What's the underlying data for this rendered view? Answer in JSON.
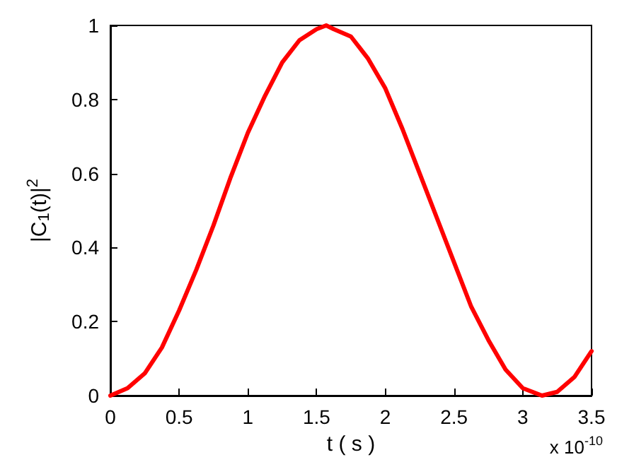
{
  "chart_data": {
    "type": "line",
    "xlabel": "t ( s )",
    "ylabel": "|C$_{1}$(t)|$^{2}$",
    "annotations": [
      "x 10$^{-10}$"
    ],
    "x": [
      0,
      0.125,
      0.25,
      0.375,
      0.5,
      0.625,
      0.75,
      0.875,
      1.0,
      1.125,
      1.25,
      1.375,
      1.5,
      1.57,
      1.625,
      1.75,
      1.875,
      2.0,
      2.125,
      2.25,
      2.375,
      2.5,
      2.625,
      2.75,
      2.875,
      3.0,
      3.14,
      3.25,
      3.375,
      3.5
    ],
    "series": [
      {
        "color": "#ff0000",
        "values": [
          0,
          0.02,
          0.06,
          0.13,
          0.23,
          0.34,
          0.46,
          0.59,
          0.71,
          0.81,
          0.9,
          0.96,
          0.99,
          1.0,
          0.99,
          0.97,
          0.91,
          0.83,
          0.72,
          0.6,
          0.48,
          0.36,
          0.24,
          0.15,
          0.07,
          0.02,
          0,
          0.01,
          0.05,
          0.12
        ]
      }
    ],
    "xlim": [
      0,
      3.5
    ],
    "xticks": [
      0,
      0.5,
      1,
      1.5,
      2,
      2.5,
      3,
      3.5
    ],
    "ylim": [
      0,
      1
    ],
    "yticks": [
      0,
      0.2,
      0.4,
      0.6,
      0.8,
      1
    ],
    "grid": false,
    "marker": "none",
    "line_style": "solid"
  }
}
